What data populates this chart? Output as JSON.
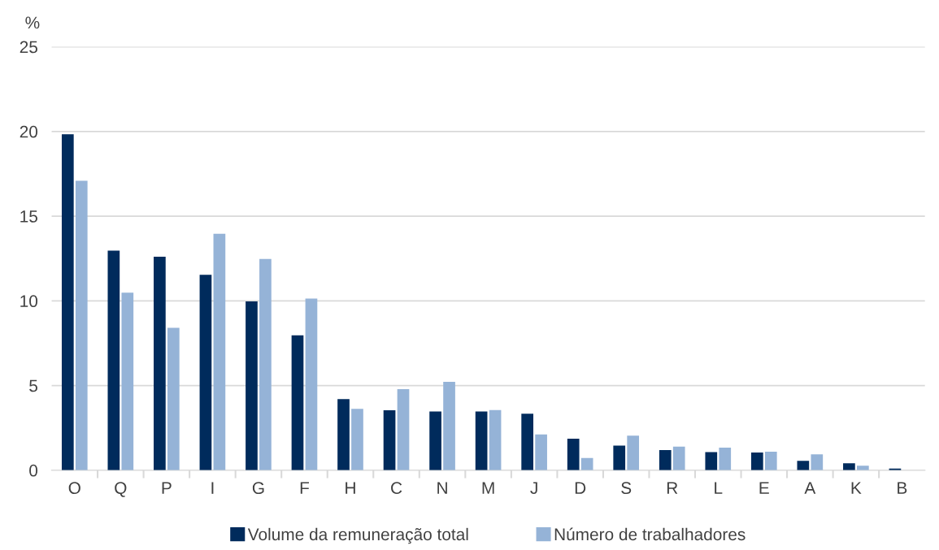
{
  "chart_data": {
    "type": "bar",
    "ylabel": "%",
    "categories": [
      "O",
      "Q",
      "P",
      "I",
      "G",
      "F",
      "H",
      "C",
      "N",
      "M",
      "J",
      "D",
      "S",
      "R",
      "L",
      "E",
      "A",
      "K",
      "B"
    ],
    "series": [
      {
        "name": "Volume da remuneração total",
        "color": "#002b5c",
        "values": [
          19.84,
          12.96,
          12.6,
          11.54,
          9.97,
          7.96,
          4.2,
          3.54,
          3.47,
          3.47,
          3.34,
          1.86,
          1.45,
          1.19,
          1.07,
          1.05,
          0.56,
          0.41,
          0.1
        ]
      },
      {
        "name": "Número de trabalhadores",
        "color": "#95b3d7",
        "values": [
          17.09,
          10.48,
          8.41,
          13.96,
          12.47,
          10.14,
          3.63,
          4.79,
          5.22,
          3.55,
          2.12,
          0.72,
          2.04,
          1.39,
          1.34,
          1.1,
          0.94,
          0.27,
          null
        ]
      }
    ],
    "ylim": [
      0,
      25
    ],
    "yticks": [
      0,
      5,
      10,
      15,
      20,
      25
    ],
    "grid": "y",
    "legend": "bottom"
  }
}
